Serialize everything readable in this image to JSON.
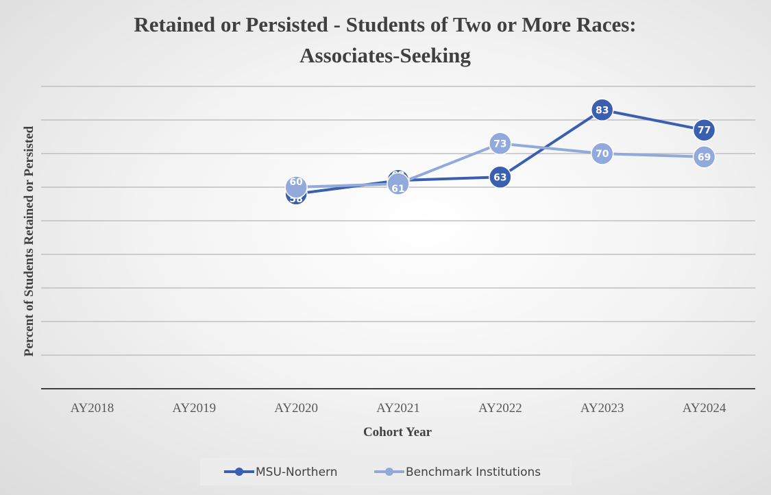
{
  "chart_data": {
    "type": "line",
    "title_line1": "Retained or Persisted - Students of  Two or More Races:",
    "title_line2": "Associates-Seeking",
    "xlabel": "Cohort Year",
    "ylabel": "Percent of  Students Retained or Persisted",
    "categories": [
      "AY2018",
      "AY2019",
      "AY2020",
      "AY2021",
      "AY2022",
      "AY2023",
      "AY2024"
    ],
    "ylim": [
      0,
      90
    ],
    "grid": true,
    "legend_position": "bottom",
    "series": [
      {
        "name": "MSU-Northern",
        "color": "#3a5fb0",
        "values": [
          null,
          null,
          58,
          62,
          63,
          83,
          77
        ]
      },
      {
        "name": "Benchmark Institutions",
        "color": "#92a9dc",
        "values": [
          null,
          null,
          60,
          61,
          73,
          70,
          69
        ]
      }
    ]
  }
}
